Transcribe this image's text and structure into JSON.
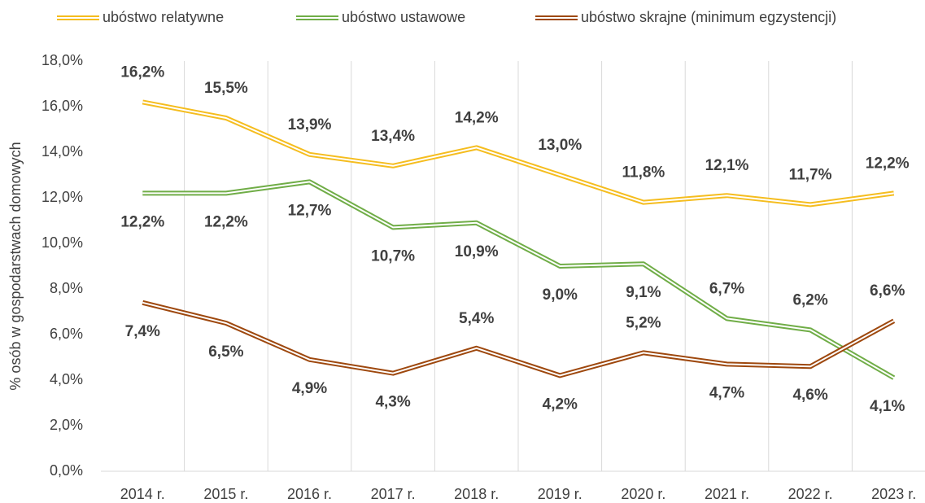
{
  "chart_data": {
    "type": "line",
    "y_label": "% osób w gospodarstwach domowych",
    "categories": [
      "2014 r.",
      "2015 r.",
      "2016 r.",
      "2017 r.",
      "2018 r.",
      "2019 r.",
      "2020 r.",
      "2021 r.",
      "2022 r.",
      "2023 r."
    ],
    "series": [
      {
        "name": "ubóstwo relatywne",
        "color": "#f5bd1f",
        "values": [
          16.2,
          15.5,
          13.9,
          13.4,
          14.2,
          13.0,
          11.8,
          12.1,
          11.7,
          12.2
        ],
        "value_labels": [
          "16,2%",
          "15,5%",
          "13,9%",
          "13,4%",
          "14,2%",
          "13,0%",
          "11,8%",
          "12,1%",
          "11,7%",
          "12,2%"
        ]
      },
      {
        "name": "ubóstwo ustawowe",
        "color": "#70ad47",
        "values": [
          12.2,
          12.2,
          12.7,
          10.7,
          10.9,
          9.0,
          9.1,
          6.7,
          6.2,
          4.1
        ],
        "value_labels": [
          "12,2%",
          "12,2%",
          "12,7%",
          "10,7%",
          "10,9%",
          "9,0%",
          "9,1%",
          "6,7%",
          "6,2%",
          "4,1%"
        ]
      },
      {
        "name": "ubóstwo skrajne (minimum egzystencji)",
        "color": "#9e480e",
        "values": [
          7.4,
          6.5,
          4.9,
          4.3,
          5.4,
          4.2,
          5.2,
          4.7,
          4.6,
          6.6
        ],
        "value_labels": [
          "7,4%",
          "6,5%",
          "4,9%",
          "4,3%",
          "5,4%",
          "4,2%",
          "5,2%",
          "4,7%",
          "4,6%",
          "6,6%"
        ]
      }
    ],
    "ylim": [
      0,
      18
    ],
    "yticks": [
      {
        "value": 0,
        "label": "0,0%"
      },
      {
        "value": 2,
        "label": "2,0%"
      },
      {
        "value": 4,
        "label": "4,0%"
      },
      {
        "value": 6,
        "label": "6,0%"
      },
      {
        "value": 8,
        "label": "8,0%"
      },
      {
        "value": 10,
        "label": "10,0%"
      },
      {
        "value": 12,
        "label": "12,0%"
      },
      {
        "value": 14,
        "label": "14,0%"
      },
      {
        "value": 16,
        "label": "16,0%"
      },
      {
        "value": 18,
        "label": "18,0%"
      }
    ],
    "legend": "top"
  }
}
